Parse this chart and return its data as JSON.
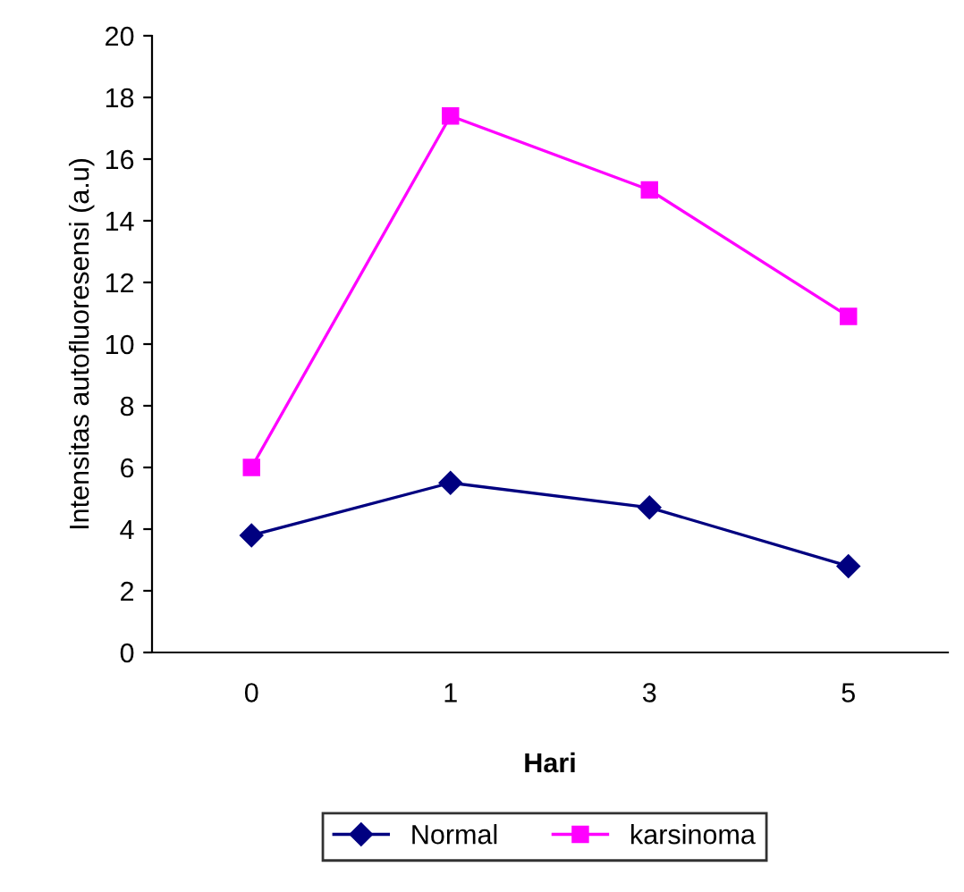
{
  "chart_data": {
    "type": "line",
    "xlabel": "Hari",
    "ylabel": "Intensitas autofluoresensi (a.u)",
    "categories": [
      "0",
      "1",
      "3",
      "5"
    ],
    "series": [
      {
        "name": "Normal",
        "color": "#000080",
        "marker": "diamond",
        "values": [
          3.8,
          5.5,
          4.7,
          2.8
        ]
      },
      {
        "name": "karsinoma",
        "color": "#ff00ff",
        "marker": "square",
        "values": [
          6.0,
          17.4,
          15.0,
          10.9
        ]
      }
    ],
    "ylim": [
      0,
      20
    ],
    "yticks": [
      0,
      2,
      4,
      6,
      8,
      10,
      12,
      14,
      16,
      18,
      20
    ],
    "grid": false,
    "legend": "bottom",
    "line_style": "solid"
  }
}
